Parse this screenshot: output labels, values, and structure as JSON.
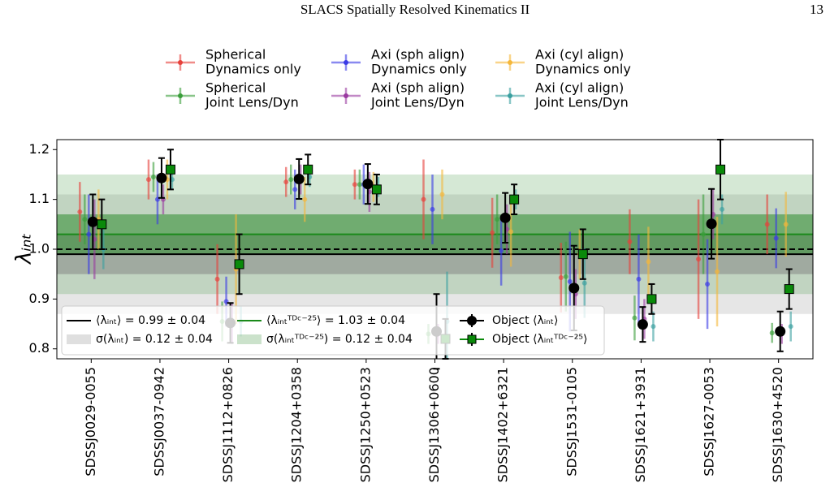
{
  "page": {
    "running_head": "SLACS Spatially Resolved Kinematics II",
    "page_number": "13"
  },
  "chart_data": {
    "type": "errorbar",
    "y_label": "λᵢₙₜ",
    "categories": [
      "SDSSJ0029-0055",
      "SDSSJ0037-0942",
      "SDSSJ1112+0826",
      "SDSSJ1204+0358",
      "SDSSJ1250+0523",
      "SDSSJ1306+0600",
      "SDSSJ1402+6321",
      "SDSSJ1531-0105",
      "SDSSJ1621+3931",
      "SDSSJ1627-0053",
      "SDSSJ1630+4520"
    ],
    "ylim": [
      0.78,
      1.22
    ],
    "yticks": [
      0.8,
      0.9,
      {
        "value": 1.0,
        "label": "1.0"
      },
      1.1,
      1.2
    ],
    "reference_line": 1.0,
    "summaries": [
      {
        "mean_label": "⟨λᵢₙₜ⟩ = 0.99 ± 0.04",
        "mean": 0.99,
        "mean_error": 0.04,
        "sigma_label": "σ(λᵢₙₜ) = 0.12 ± 0.04",
        "sigma": 0.12,
        "color": "#000000",
        "band_color": "#808080"
      },
      {
        "mean_label": "⟨λᵢₙₜᵀᴰᶜ⁻²⁵⟩ = 1.03 ± 0.04",
        "mean": 1.03,
        "mean_error": 0.04,
        "sigma_label": "σ(λᵢₙₜᵀᴰᶜ⁻²⁵) = 0.12 ± 0.04",
        "sigma": 0.12,
        "color": "#1a8a1a",
        "band_color": "#2e8b2e"
      }
    ],
    "series": [
      {
        "name": [
          "Spherical",
          "Dynamics only"
        ],
        "color": "#e6403a",
        "values": [
          1.075,
          1.14,
          0.94,
          1.135,
          1.13,
          1.1,
          1.033,
          0.943,
          1.015,
          0.98,
          1.05
        ],
        "errors": [
          0.06,
          0.04,
          0.07,
          0.03,
          0.03,
          0.08,
          0.07,
          0.07,
          0.065,
          0.12,
          0.06
        ]
      },
      {
        "name": [
          "Spherical",
          "Joint Lens/Dyn"
        ],
        "color": "#3a9e3a",
        "values": [
          1.06,
          1.145,
          0.855,
          1.14,
          1.13,
          0.83,
          1.06,
          0.945,
          0.862,
          1.03,
          0.832
        ],
        "errors": [
          0.05,
          0.03,
          0.04,
          0.03,
          0.03,
          0.02,
          0.05,
          0.07,
          0.045,
          0.08,
          0.02
        ]
      },
      {
        "name": [
          "Axi (sph align)",
          "Dynamics only"
        ],
        "color": "#3a3ae6",
        "values": [
          1.03,
          1.1,
          0.895,
          1.12,
          1.13,
          1.08,
          0.997,
          0.935,
          0.94,
          0.93,
          1.022
        ],
        "errors": [
          0.08,
          0.05,
          0.05,
          0.04,
          0.04,
          0.07,
          0.07,
          0.1,
          0.09,
          0.09,
          0.06
        ]
      },
      {
        "name": [
          "Axi (sph align)",
          "Joint Lens/Dyn"
        ],
        "color": "#9a3aa0",
        "values": [
          1.02,
          1.1,
          0.85,
          1.14,
          1.115,
          0.83,
          1.04,
          0.91,
          0.86,
          1.07,
          0.83
        ],
        "errors": [
          0.08,
          0.03,
          0.04,
          0.03,
          0.04,
          0.02,
          0.05,
          0.05,
          0.04,
          0.05,
          0.02
        ]
      },
      {
        "name": [
          "Axi (cyl align)",
          "Dynamics only"
        ],
        "color": "#f5b73a",
        "values": [
          1.06,
          1.14,
          0.96,
          1.1,
          1.125,
          1.11,
          1.035,
          0.99,
          0.975,
          0.955,
          1.05
        ],
        "errors": [
          0.06,
          0.04,
          0.11,
          0.045,
          0.03,
          0.05,
          0.07,
          0.05,
          0.07,
          0.11,
          0.065
        ]
      },
      {
        "name": [
          "Axi (cyl align)",
          "Joint Lens/Dyn"
        ],
        "color": "#3aa0a0",
        "values": [
          1.0,
          1.14,
          0.855,
          1.145,
          1.125,
          0.855,
          1.1,
          0.932,
          0.845,
          1.08,
          0.845
        ],
        "errors": [
          0.04,
          0.02,
          0.03,
          0.02,
          0.02,
          0.1,
          0.02,
          0.07,
          0.03,
          0.03,
          0.03
        ]
      },
      {
        "name": "Object ⟨λᵢₙₜ⟩",
        "color": "#000000",
        "marker": "circle",
        "values": [
          1.055,
          1.143,
          0.852,
          1.141,
          1.131,
          0.835,
          1.063,
          0.922,
          0.849,
          1.051,
          0.835
        ],
        "errors": [
          0.055,
          0.04,
          0.04,
          0.04,
          0.04,
          0.075,
          0.05,
          0.085,
          0.035,
          0.07,
          0.04
        ]
      },
      {
        "name": "Object ⟨λᵢₙₜᵀᴰᶜ⁻²⁵⟩",
        "color": "#0a8a0a",
        "marker": "square",
        "values": [
          1.05,
          1.16,
          0.97,
          1.16,
          1.12,
          0.82,
          1.1,
          0.99,
          0.9,
          1.16,
          0.92
        ],
        "errors": [
          0.05,
          0.04,
          0.06,
          0.03,
          0.03,
          0.04,
          0.03,
          0.05,
          0.03,
          0.06,
          0.04
        ]
      }
    ]
  }
}
